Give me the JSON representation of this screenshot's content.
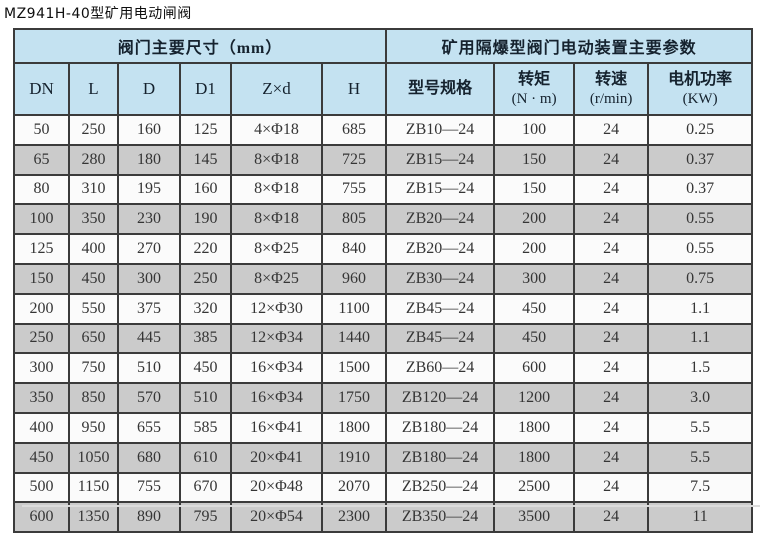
{
  "title": "MZ941H-40型矿用电动闸阀",
  "colors": {
    "header_bg": "#c4e2f1",
    "row_alt_bg": "#cbcbcb",
    "row_bg": "#fbfbfb",
    "grid": "#3b3b3b"
  },
  "table": {
    "group_headers": [
      {
        "label": "阀门主要尺寸（mm）",
        "colspan": 6
      },
      {
        "label": "矿用隔爆型阀门电动装置主要参数",
        "colspan": 4
      }
    ],
    "columns": [
      {
        "label": "DN",
        "sub": ""
      },
      {
        "label": "L",
        "sub": ""
      },
      {
        "label": "D",
        "sub": ""
      },
      {
        "label": "D1",
        "sub": ""
      },
      {
        "label": "Z×d",
        "sub": ""
      },
      {
        "label": "H",
        "sub": ""
      },
      {
        "label": "型号规格",
        "sub": ""
      },
      {
        "label": "转矩",
        "sub": "(N · m)"
      },
      {
        "label": "转速",
        "sub": "(r/min)"
      },
      {
        "label": "电机功率",
        "sub": "(KW)"
      }
    ],
    "rows": [
      [
        "50",
        "250",
        "160",
        "125",
        "4×Φ18",
        "685",
        "ZB10—24",
        "100",
        "24",
        "0.25"
      ],
      [
        "65",
        "280",
        "180",
        "145",
        "8×Φ18",
        "725",
        "ZB15—24",
        "150",
        "24",
        "0.37"
      ],
      [
        "80",
        "310",
        "195",
        "160",
        "8×Φ18",
        "755",
        "ZB15—24",
        "150",
        "24",
        "0.37"
      ],
      [
        "100",
        "350",
        "230",
        "190",
        "8×Φ18",
        "805",
        "ZB20—24",
        "200",
        "24",
        "0.55"
      ],
      [
        "125",
        "400",
        "270",
        "220",
        "8×Φ25",
        "840",
        "ZB20—24",
        "200",
        "24",
        "0.55"
      ],
      [
        "150",
        "450",
        "300",
        "250",
        "8×Φ25",
        "960",
        "ZB30—24",
        "300",
        "24",
        "0.75"
      ],
      [
        "200",
        "550",
        "375",
        "320",
        "12×Φ30",
        "1100",
        "ZB45—24",
        "450",
        "24",
        "1.1"
      ],
      [
        "250",
        "650",
        "445",
        "385",
        "12×Φ34",
        "1440",
        "ZB45—24",
        "450",
        "24",
        "1.1"
      ],
      [
        "300",
        "750",
        "510",
        "450",
        "16×Φ34",
        "1500",
        "ZB60—24",
        "600",
        "24",
        "1.5"
      ],
      [
        "350",
        "850",
        "570",
        "510",
        "16×Φ34",
        "1750",
        "ZB120—24",
        "1200",
        "24",
        "3.0"
      ],
      [
        "400",
        "950",
        "655",
        "585",
        "16×Φ41",
        "1800",
        "ZB180—24",
        "1800",
        "24",
        "5.5"
      ],
      [
        "450",
        "1050",
        "680",
        "610",
        "20×Φ41",
        "1910",
        "ZB180—24",
        "1800",
        "24",
        "5.5"
      ],
      [
        "500",
        "1150",
        "755",
        "670",
        "20×Φ48",
        "2070",
        "ZB250—24",
        "2500",
        "24",
        "7.5"
      ],
      [
        "600",
        "1350",
        "890",
        "795",
        "20×Φ54",
        "2300",
        "ZB350—24",
        "3500",
        "24",
        "11"
      ]
    ]
  }
}
